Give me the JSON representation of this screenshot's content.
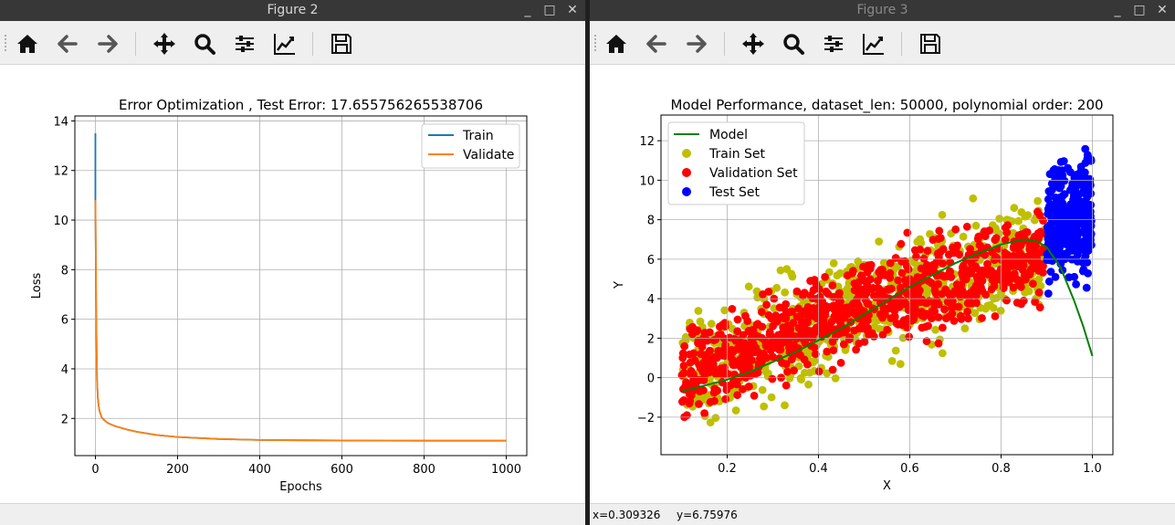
{
  "windows": [
    {
      "title": "Figure 2",
      "toolbar": [
        "home-icon",
        "back-arrow-icon",
        "forward-arrow-icon",
        "pan-icon",
        "zoom-icon",
        "configure-subplots-icon",
        "edit-axis-icon",
        "save-icon"
      ],
      "status": {
        "x": "",
        "y": ""
      }
    },
    {
      "title": "Figure 3",
      "toolbar": [
        "home-icon",
        "back-arrow-icon",
        "forward-arrow-icon",
        "pan-icon",
        "zoom-icon",
        "configure-subplots-icon",
        "edit-axis-icon",
        "save-icon"
      ],
      "status": {
        "x": "x=0.309326",
        "y": "y=6.75976"
      }
    }
  ],
  "chart_data": [
    {
      "type": "line",
      "title": "Error Optimization , Test Error: 17.655756265538706",
      "xlabel": "Epochs",
      "ylabel": "Loss",
      "xlim": [
        -50,
        1050
      ],
      "ylim": [
        0.5,
        14.2
      ],
      "xticks": [
        "0",
        "200",
        "400",
        "600",
        "800",
        "1000"
      ],
      "yticks": [
        "2",
        "4",
        "6",
        "8",
        "10",
        "12",
        "14"
      ],
      "grid": true,
      "legend": "top-right",
      "series": [
        {
          "name": "Train",
          "color": "#1f77b4",
          "x": [
            0,
            0,
            2,
            4,
            6,
            8,
            10,
            15,
            20,
            30,
            40,
            50,
            75,
            100,
            150,
            200,
            300,
            400,
            500,
            600,
            700,
            800,
            900,
            1000
          ],
          "y": [
            13.5,
            10.8,
            6.0,
            3.5,
            2.8,
            2.5,
            2.3,
            2.05,
            1.95,
            1.82,
            1.74,
            1.68,
            1.56,
            1.46,
            1.33,
            1.25,
            1.17,
            1.13,
            1.12,
            1.11,
            1.105,
            1.1,
            1.1,
            1.1
          ]
        },
        {
          "name": "Validate",
          "color": "#ff7f0e",
          "x": [
            0,
            2,
            4,
            6,
            8,
            10,
            15,
            20,
            30,
            40,
            50,
            75,
            100,
            150,
            200,
            300,
            400,
            500,
            600,
            700,
            800,
            900,
            1000
          ],
          "y": [
            10.8,
            6.0,
            3.5,
            2.8,
            2.5,
            2.3,
            2.05,
            1.95,
            1.82,
            1.74,
            1.68,
            1.56,
            1.46,
            1.33,
            1.25,
            1.17,
            1.13,
            1.12,
            1.11,
            1.105,
            1.1,
            1.1,
            1.1
          ]
        }
      ]
    },
    {
      "type": "scatter",
      "title": "Model Performance, dataset_len: 50000, polynomial order: 200",
      "xlabel": "X",
      "ylabel": "Y",
      "xlim": [
        0.055,
        1.045
      ],
      "ylim": [
        -3.9,
        13.3
      ],
      "xticks": [
        "0.2",
        "0.4",
        "0.6",
        "0.8",
        "1.0"
      ],
      "yticks": [
        "−2",
        "0",
        "2",
        "4",
        "6",
        "8",
        "10",
        "12"
      ],
      "grid": true,
      "legend": "top-left",
      "series": [
        {
          "name": "Model",
          "color": "#008000",
          "kind": "line",
          "x": [
            0.1,
            0.15,
            0.2,
            0.25,
            0.3,
            0.35,
            0.4,
            0.45,
            0.5,
            0.55,
            0.6,
            0.65,
            0.7,
            0.75,
            0.8,
            0.85,
            0.88,
            0.9,
            0.93,
            0.96,
            0.98,
            1.0
          ],
          "y": [
            -0.7,
            -0.4,
            -0.1,
            0.3,
            0.8,
            1.3,
            1.9,
            2.5,
            3.2,
            3.9,
            4.6,
            5.2,
            5.8,
            6.3,
            6.75,
            7.0,
            6.9,
            6.6,
            5.6,
            3.9,
            2.6,
            1.1
          ]
        },
        {
          "name": "Train Set",
          "color": "#bfbf00",
          "kind": "points",
          "x_range": [
            0.1,
            0.9
          ],
          "y_range": [
            -3.0,
            9.5
          ]
        },
        {
          "name": "Validation Set",
          "color": "#ff0000",
          "kind": "points",
          "x_range": [
            0.1,
            0.9
          ],
          "y_range": [
            -2.6,
            8.4
          ]
        },
        {
          "name": "Test Set",
          "color": "#0000ff",
          "kind": "points",
          "x_range": [
            0.9,
            1.0
          ],
          "y_range": [
            4.2,
            12.6
          ]
        }
      ]
    }
  ]
}
